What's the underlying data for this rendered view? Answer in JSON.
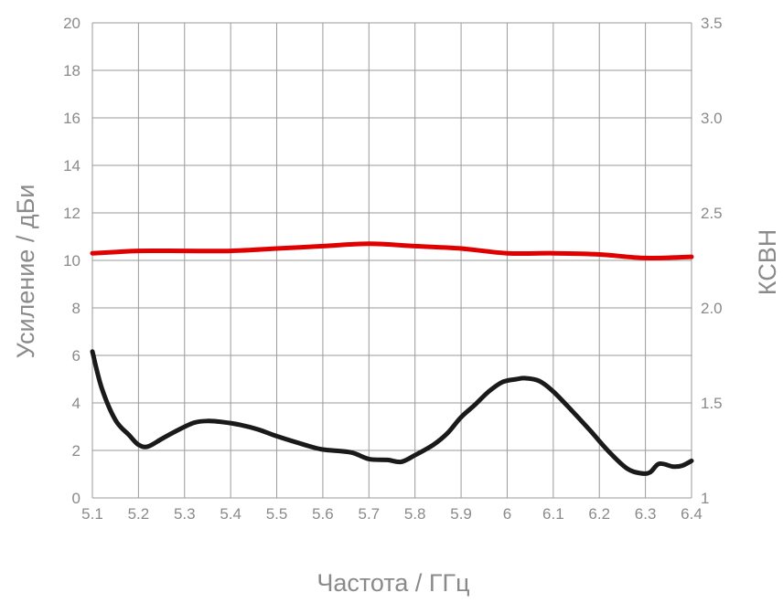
{
  "chart_data": {
    "type": "line",
    "xlabel": "Частота / ГГц",
    "ylabel": "Усиление / дБи",
    "y2label": "КСВН",
    "xlim": [
      5.1,
      6.4
    ],
    "ylim": [
      0,
      20
    ],
    "y2lim": [
      1,
      3.5
    ],
    "grid": true,
    "x_ticks": [
      "5.1",
      "5.2",
      "5.3",
      "5.4",
      "5.5",
      "5.6",
      "5.7",
      "5.8",
      "5.9",
      "6",
      "6.1",
      "6.2",
      "6.3",
      "6.4"
    ],
    "y_ticks": [
      "0",
      "2",
      "4",
      "6",
      "8",
      "10",
      "12",
      "14",
      "16",
      "18",
      "20"
    ],
    "y2_ticks": [
      "1",
      "1.5",
      "2.0",
      "2.5",
      "3.0",
      "3.5"
    ],
    "series": [
      {
        "axis": "left",
        "color": "#e00000",
        "x": [
          5.1,
          5.15,
          5.2,
          5.3,
          5.4,
          5.5,
          5.6,
          5.7,
          5.8,
          5.9,
          6.0,
          6.1,
          6.2,
          6.3,
          6.4
        ],
        "y": [
          10.3,
          10.35,
          10.4,
          10.4,
          10.4,
          10.5,
          10.6,
          10.7,
          10.6,
          10.5,
          10.3,
          10.3,
          10.25,
          10.1,
          10.15
        ]
      },
      {
        "axis": "right",
        "color": "#1a1a1a",
        "x": [
          5.1,
          5.12,
          5.15,
          5.18,
          5.2,
          5.22,
          5.25,
          5.28,
          5.32,
          5.35,
          5.38,
          5.42,
          5.46,
          5.5,
          5.56,
          5.6,
          5.66,
          5.7,
          5.74,
          5.77,
          5.8,
          5.84,
          5.87,
          5.9,
          5.93,
          5.96,
          5.99,
          6.02,
          6.04,
          6.07,
          6.1,
          6.14,
          6.18,
          6.22,
          6.26,
          6.29,
          6.31,
          6.33,
          6.36,
          6.38,
          6.4
        ],
        "y": [
          1.77,
          1.58,
          1.41,
          1.33,
          1.28,
          1.27,
          1.31,
          1.35,
          1.395,
          1.405,
          1.4,
          1.385,
          1.36,
          1.325,
          1.28,
          1.255,
          1.24,
          1.205,
          1.2,
          1.19,
          1.225,
          1.28,
          1.34,
          1.425,
          1.49,
          1.56,
          1.61,
          1.625,
          1.63,
          1.615,
          1.56,
          1.46,
          1.355,
          1.245,
          1.155,
          1.13,
          1.135,
          1.18,
          1.165,
          1.17,
          1.195
        ]
      }
    ]
  }
}
